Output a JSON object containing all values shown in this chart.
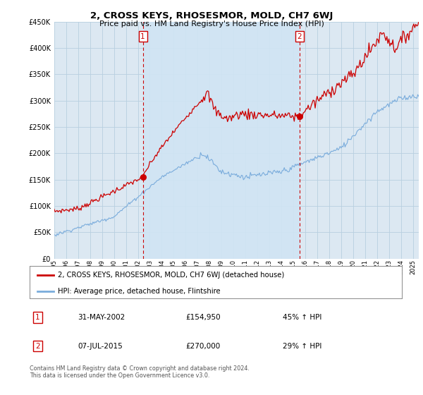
{
  "title": "2, CROSS KEYS, RHOSESMOR, MOLD, CH7 6WJ",
  "subtitle": "Price paid vs. HM Land Registry's House Price Index (HPI)",
  "legend_line1": "2, CROSS KEYS, RHOSESMOR, MOLD, CH7 6WJ (detached house)",
  "legend_line2": "HPI: Average price, detached house, Flintshire",
  "transaction1_date": "31-MAY-2002",
  "transaction1_price": "£154,950",
  "transaction1_hpi": "45% ↑ HPI",
  "transaction2_date": "07-JUL-2015",
  "transaction2_price": "£270,000",
  "transaction2_hpi": "29% ↑ HPI",
  "footnote": "Contains HM Land Registry data © Crown copyright and database right 2024.\nThis data is licensed under the Open Government Licence v3.0.",
  "ylim": [
    0,
    450000
  ],
  "yticks": [
    0,
    50000,
    100000,
    150000,
    200000,
    250000,
    300000,
    350000,
    400000,
    450000
  ],
  "red_line_color": "#cc0000",
  "blue_line_color": "#7aacdc",
  "highlight_color": "#d0e4f4",
  "background_color": "#dce8f2",
  "grid_color": "#b8cfe0",
  "marker1_x": 2002.42,
  "marker1_y": 154950,
  "marker2_x": 2015.51,
  "marker2_y": 270000,
  "xmin": 1995,
  "xmax": 2025.5
}
